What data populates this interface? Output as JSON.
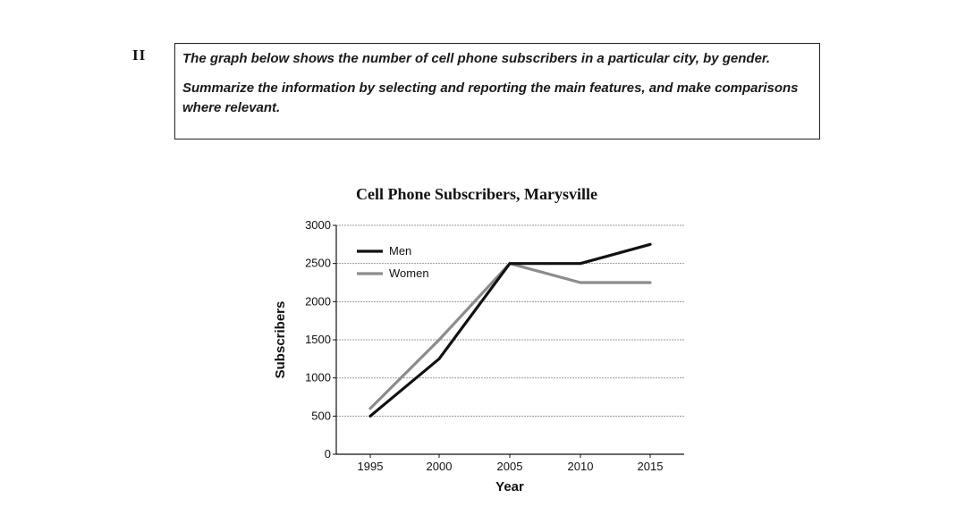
{
  "section": {
    "label": "II"
  },
  "prompt": {
    "line1": "The graph below shows the number of cell phone subscribers in a particular city, by gender.",
    "line2": "Summarize the information by selecting and reporting the main features, and make comparisons where relevant."
  },
  "colors": {
    "men": "#111111",
    "women": "#8c8c8c",
    "grid": "#9a9a9a"
  },
  "chart_data": {
    "type": "line",
    "title": "Cell Phone Subscribers, Marysville",
    "xlabel": "Year",
    "ylabel": "Subscribers",
    "x": [
      1995,
      2000,
      2005,
      2010,
      2015
    ],
    "x_tick_labels": [
      "1995",
      "2000",
      "2005",
      "2010",
      "2015"
    ],
    "ylim": [
      0,
      3000
    ],
    "y_ticks": [
      0,
      500,
      1000,
      1500,
      2000,
      2500,
      3000
    ],
    "y_tick_labels": [
      "0",
      "500",
      "1000",
      "1500",
      "2000",
      "2500",
      "3000"
    ],
    "grid": "horizontal",
    "legend_position": "top-left",
    "series": [
      {
        "name": "Men",
        "values": [
          500,
          1250,
          2500,
          2500,
          2750
        ]
      },
      {
        "name": "Women",
        "values": [
          600,
          1500,
          2500,
          2250,
          2250
        ]
      }
    ]
  }
}
